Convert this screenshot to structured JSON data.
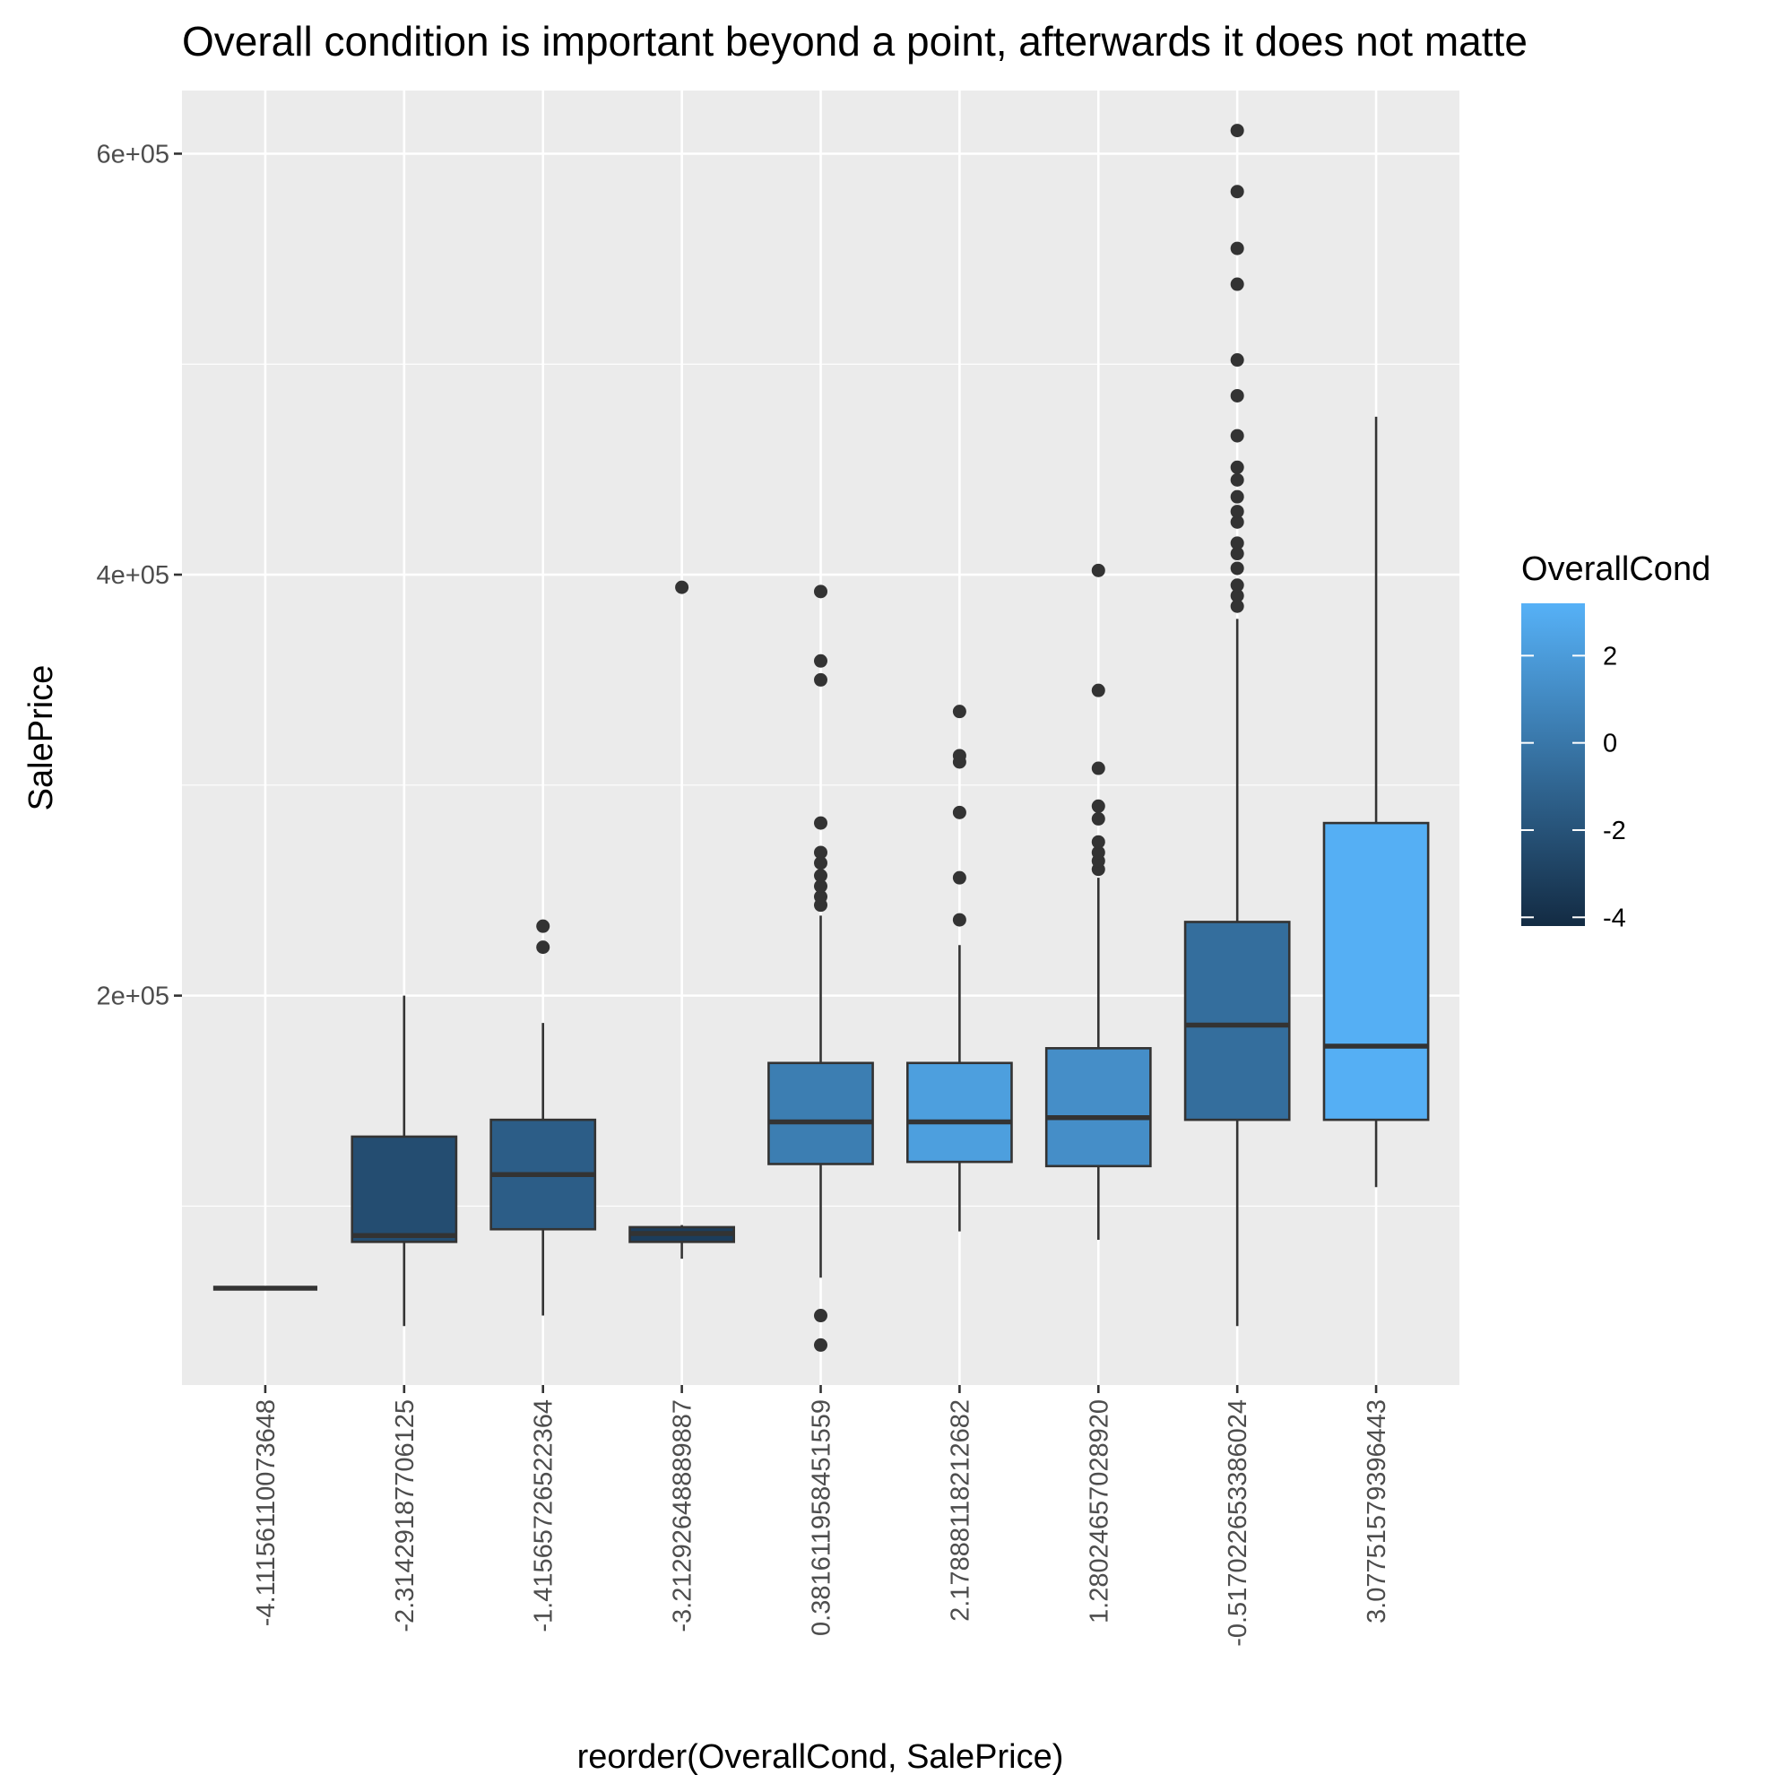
{
  "chart_data": {
    "type": "boxplot",
    "title": "Overall condition is important beyond a point, afterwards it does not matte",
    "xlabel": "reorder(OverallCond, SalePrice)",
    "ylabel": "SalePrice",
    "ylim": [
      15000,
      630000
    ],
    "yticks": [
      200000,
      400000,
      600000
    ],
    "ytick_labels": [
      "2e+05",
      "4e+05",
      "6e+05"
    ],
    "grid": true,
    "legend": {
      "title": "OverallCond",
      "position": "right",
      "min": -4.2,
      "max": 3.2,
      "ticks": [
        -4,
        -2,
        0,
        2
      ],
      "tick_labels": [
        "-4",
        "-2",
        "0",
        "2"
      ],
      "color_low": "#132B43",
      "color_high": "#56B1F7"
    },
    "categories": [
      "-4.11156110073648",
      "-2.31429187706125",
      "-1.41565726522364",
      "-3.21292648889887",
      "0.381611958451559",
      "2.17888118212682",
      "1.28024657028920",
      "-0.517022653386024",
      "3.07751579396443"
    ],
    "boxes": [
      {
        "value": -4.11,
        "whisker_low": 61000,
        "q1": 61000,
        "median": 61000,
        "q3": 61000,
        "whisker_high": 61000,
        "outliers": []
      },
      {
        "value": -2.31,
        "whisker_low": 43000,
        "q1": 83000,
        "median": 86000,
        "q3": 133000,
        "whisker_high": 200000,
        "outliers": []
      },
      {
        "value": -1.42,
        "whisker_low": 48000,
        "q1": 89000,
        "median": 115000,
        "q3": 141000,
        "whisker_high": 187000,
        "outliers": [
          223000,
          233000
        ]
      },
      {
        "value": -3.21,
        "whisker_low": 75000,
        "q1": 83000,
        "median": 87000,
        "q3": 90000,
        "whisker_high": 91000,
        "outliers": [
          394000
        ]
      },
      {
        "value": 0.38,
        "whisker_low": 66000,
        "q1": 120000,
        "median": 140000,
        "q3": 168000,
        "whisker_high": 238000,
        "outliers": [
          34000,
          48000,
          243000,
          247000,
          252000,
          257000,
          263000,
          268000,
          282000,
          350000,
          359000,
          392000
        ]
      },
      {
        "value": 2.18,
        "whisker_low": 88000,
        "q1": 121000,
        "median": 140000,
        "q3": 168000,
        "whisker_high": 224000,
        "outliers": [
          236000,
          256000,
          287000,
          311000,
          314000,
          335000
        ]
      },
      {
        "value": 1.28,
        "whisker_low": 84000,
        "q1": 119000,
        "median": 142000,
        "q3": 175000,
        "whisker_high": 256000,
        "outliers": [
          260000,
          264000,
          268000,
          273000,
          284000,
          290000,
          308000,
          345000,
          402000
        ]
      },
      {
        "value": -0.52,
        "whisker_low": 43000,
        "q1": 141000,
        "median": 186000,
        "q3": 235000,
        "whisker_high": 379000,
        "outliers": [
          385000,
          390000,
          395000,
          403000,
          410000,
          415000,
          425000,
          430000,
          437000,
          445000,
          451000,
          466000,
          485000,
          502000,
          538000,
          555000,
          582000,
          611000
        ]
      },
      {
        "value": 3.08,
        "whisker_low": 109000,
        "q1": 141000,
        "median": 176000,
        "q3": 282000,
        "whisker_high": 475000,
        "outliers": []
      }
    ]
  }
}
